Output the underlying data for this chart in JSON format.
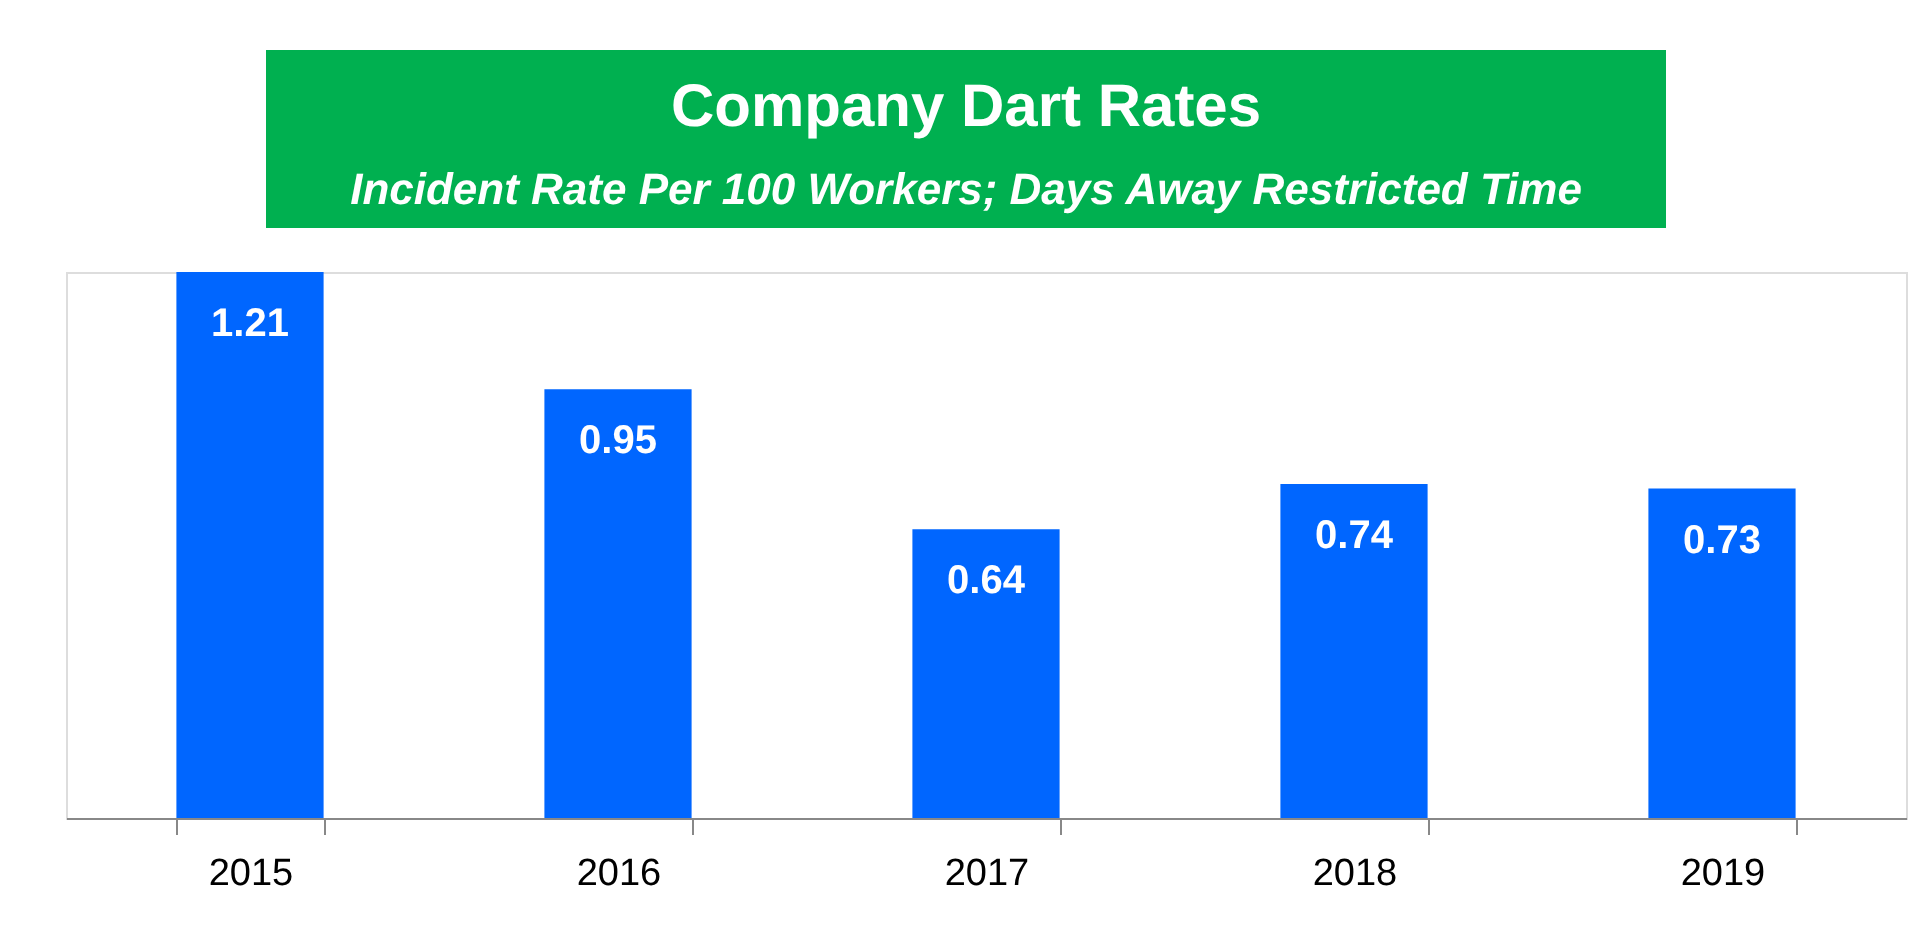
{
  "chart_data": {
    "type": "bar",
    "title": "Company Dart Rates",
    "subtitle": "Incident Rate Per 100 Workers; Days Away Restricted Time",
    "categories": [
      "2015",
      "2016",
      "2017",
      "2018",
      "2019"
    ],
    "values": [
      1.21,
      0.95,
      0.64,
      0.74,
      0.73
    ],
    "color": "#0066ff",
    "tick_labels": "x",
    "data_labels": true,
    "grid": false
  }
}
